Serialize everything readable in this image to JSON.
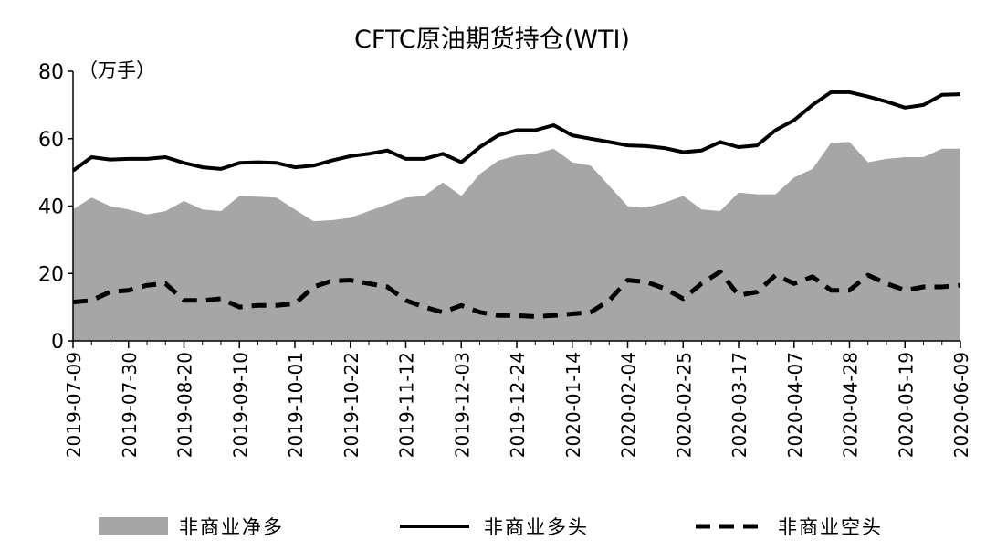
{
  "chart_data": {
    "type": "area",
    "title": "CFTC原油期货持仓(WTI)",
    "unit_label": "（万手）",
    "ylim": [
      0,
      80
    ],
    "yticks": [
      "0",
      "20",
      "40",
      "60",
      "80"
    ],
    "xtick_labels": [
      "2019-07-09",
      "2019-07-30",
      "2019-08-20",
      "2019-09-10",
      "2019-10-01",
      "2019-10-22",
      "2019-11-12",
      "2019-12-03",
      "2019-12-24",
      "2020-01-14",
      "2020-02-04",
      "2020-02-25",
      "2020-03-17",
      "2020-04-07",
      "2020-04-28",
      "2020-05-19",
      "2020-06-09"
    ],
    "x": [
      "2019-07-09",
      "2019-07-16",
      "2019-07-23",
      "2019-07-30",
      "2019-08-06",
      "2019-08-13",
      "2019-08-20",
      "2019-08-27",
      "2019-09-03",
      "2019-09-10",
      "2019-09-17",
      "2019-09-24",
      "2019-10-01",
      "2019-10-08",
      "2019-10-15",
      "2019-10-22",
      "2019-10-29",
      "2019-11-05",
      "2019-11-12",
      "2019-11-19",
      "2019-11-26",
      "2019-12-03",
      "2019-12-10",
      "2019-12-17",
      "2019-12-24",
      "2019-12-31",
      "2020-01-07",
      "2020-01-14",
      "2020-01-21",
      "2020-01-28",
      "2020-02-04",
      "2020-02-11",
      "2020-02-18",
      "2020-02-25",
      "2020-03-03",
      "2020-03-10",
      "2020-03-17",
      "2020-03-24",
      "2020-03-31",
      "2020-04-07",
      "2020-04-14",
      "2020-04-21",
      "2020-04-28",
      "2020-05-05",
      "2020-05-12",
      "2020-05-19",
      "2020-05-26",
      "2020-06-02",
      "2020-06-09"
    ],
    "series": [
      {
        "name": "非商业净多",
        "kind": "area",
        "color": "#a6a6a6",
        "values": [
          39,
          42.5,
          40,
          39,
          37.5,
          38.5,
          41.5,
          39,
          38.5,
          43,
          42.8,
          42.5,
          39,
          35.5,
          35.8,
          36.5,
          38.5,
          40.5,
          42.5,
          43,
          47,
          43,
          49.5,
          53.5,
          55,
          55.5,
          57,
          53,
          52,
          46,
          40,
          39.5,
          41,
          43,
          39,
          38.5,
          44,
          43.5,
          43.5,
          48.5,
          51,
          58.8,
          59,
          53,
          54,
          54.5,
          54.5,
          57,
          57
        ]
      },
      {
        "name": "非商业多头",
        "kind": "line",
        "color": "#000000",
        "values": [
          50.5,
          54.5,
          53.8,
          54,
          54,
          54.5,
          52.8,
          51.5,
          51,
          52.8,
          53,
          52.8,
          51.5,
          52,
          53.5,
          54.8,
          55.5,
          56.5,
          54,
          54,
          55.5,
          53,
          57.5,
          61,
          62.5,
          62.5,
          64,
          61,
          60,
          59,
          58,
          57.8,
          57.2,
          56,
          56.5,
          59,
          57.5,
          58,
          62.5,
          65.5,
          70,
          73.8,
          73.8,
          72.5,
          71,
          69.2,
          70,
          73,
          73.2
        ]
      },
      {
        "name": "非商业空头",
        "kind": "dashed",
        "color": "#000000",
        "values": [
          11.5,
          12,
          14.5,
          15,
          16.5,
          17,
          12,
          12,
          12.5,
          10,
          10.5,
          10.5,
          11,
          16,
          17.8,
          18,
          17,
          16,
          12,
          10,
          8.5,
          10.5,
          8.5,
          7.5,
          7.5,
          7.2,
          7.5,
          8,
          8.5,
          12,
          18,
          17.5,
          15.5,
          12.5,
          17,
          20.5,
          13.5,
          14.5,
          19.5,
          17,
          19,
          15,
          15,
          19.5,
          17,
          15,
          16,
          16,
          16.5
        ]
      }
    ],
    "legend_position": "bottom"
  }
}
